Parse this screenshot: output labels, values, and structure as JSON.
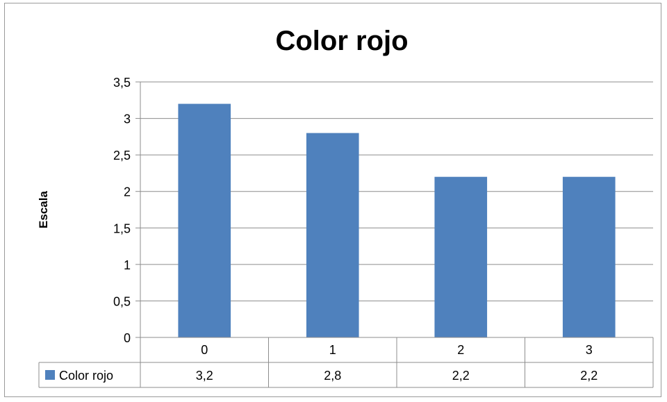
{
  "chart_data": {
    "type": "bar",
    "title": "Color rojo",
    "xlabel": "",
    "ylabel": "Escala",
    "categories": [
      "0",
      "1",
      "2",
      "3"
    ],
    "series": [
      {
        "name": "Color rojo",
        "values": [
          3.2,
          2.8,
          2.2,
          2.2
        ],
        "value_labels": [
          "3,2",
          "2,8",
          "2,2",
          "2,2"
        ],
        "color": "#4f81bd"
      }
    ],
    "ylim": [
      0,
      3.5
    ],
    "y_ticks": [
      "0",
      "0,5",
      "1",
      "1,5",
      "2",
      "2,5",
      "3",
      "3,5"
    ],
    "grid": true,
    "legend": "data-table",
    "data_table": true
  },
  "colors": {
    "bar": "#4f81bd",
    "grid": "#8c8c8c",
    "border": "#9a9a9a"
  }
}
